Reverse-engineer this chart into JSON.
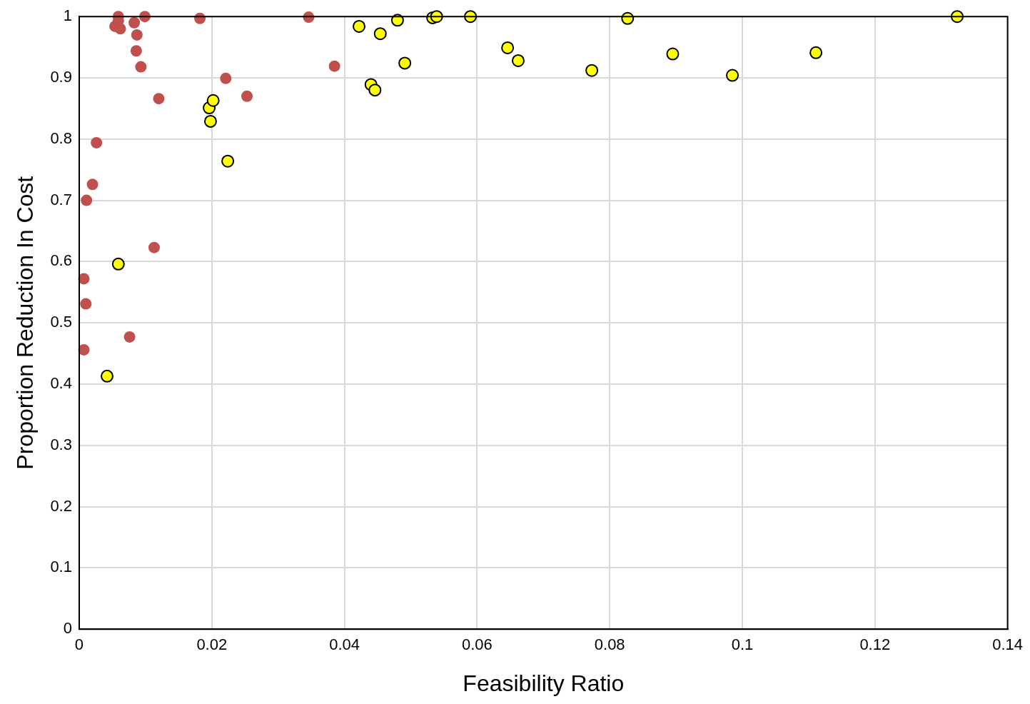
{
  "chart_data": {
    "type": "scatter",
    "xlabel": "Feasibility Ratio",
    "ylabel": "Proportion Reduction In Cost",
    "xlim": [
      0,
      0.14
    ],
    "xticks": [
      0,
      0.02,
      0.04,
      0.06,
      0.08,
      0.1,
      0.12,
      0.14
    ],
    "ylim": [
      0,
      1
    ],
    "yticks": [
      0,
      0.1,
      0.2,
      0.3,
      0.4,
      0.5,
      0.6,
      0.7,
      0.8,
      0.9,
      1
    ],
    "grid": true,
    "legend": false,
    "marker": "circle",
    "series": [
      {
        "color": "#c0504d",
        "x": [
          0.0059,
          0.0059,
          0.0054,
          0.0062,
          0.0083,
          0.0099,
          0.0087,
          0.0086,
          0.0093,
          0.0182,
          0.012,
          0.0026,
          0.002,
          0.0011,
          0.0221,
          0.0253,
          0.0346,
          0.0385,
          0.0113,
          0.0007,
          0.001,
          0.0076,
          0.0007
        ],
        "values": [
          1.0,
          0.993,
          0.984,
          0.98,
          0.99,
          1.0,
          0.97,
          0.944,
          0.918,
          0.997,
          0.866,
          0.794,
          0.726,
          0.7,
          0.899,
          0.87,
          0.999,
          0.919,
          0.623,
          0.572,
          0.531,
          0.477,
          0.456
        ]
      },
      {
        "color": "#ffff00",
        "x": [
          0.0059,
          0.0042,
          0.0196,
          0.0202,
          0.0198,
          0.0224,
          0.0422,
          0.0454,
          0.044,
          0.0446,
          0.048,
          0.0491,
          0.0533,
          0.0539,
          0.059,
          0.0646,
          0.0662,
          0.0773,
          0.0827,
          0.0895,
          0.0985,
          0.1111,
          0.1324
        ],
        "values": [
          0.596,
          0.413,
          0.851,
          0.863,
          0.829,
          0.764,
          0.984,
          0.972,
          0.889,
          0.88,
          0.994,
          0.924,
          0.998,
          1.0,
          1.0,
          0.949,
          0.928,
          0.912,
          0.997,
          0.939,
          0.904,
          0.941,
          1.0
        ]
      }
    ]
  }
}
